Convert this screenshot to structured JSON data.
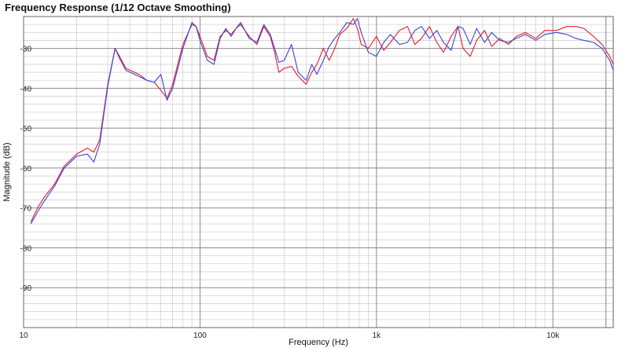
{
  "chart_data": {
    "type": "line",
    "title": "Frequency Response (1/12 Octave Smoothing)",
    "xlabel": "Frequency (Hz)",
    "ylabel": "Magnitude (dB)",
    "x_scale": "log",
    "xlim": [
      10,
      22000
    ],
    "ylim": [
      -100,
      -22
    ],
    "x_tick_labels": [
      {
        "value": 10,
        "label": "10"
      },
      {
        "value": 100,
        "label": "100"
      },
      {
        "value": 1000,
        "label": "1k"
      },
      {
        "value": 10000,
        "label": "10k"
      }
    ],
    "y_tick_labels": [
      {
        "value": -30,
        "label": "-30"
      },
      {
        "value": -40,
        "label": "-40"
      },
      {
        "value": -50,
        "label": "-50"
      },
      {
        "value": -60,
        "label": "-60"
      },
      {
        "value": -70,
        "label": "-70"
      },
      {
        "value": -80,
        "label": "-80"
      },
      {
        "value": -90,
        "label": "-90"
      }
    ],
    "grid": true,
    "series": [
      {
        "color": "#e8192c",
        "points": [
          [
            11,
            -73.5
          ],
          [
            12,
            -70
          ],
          [
            13,
            -67.5
          ],
          [
            15,
            -64
          ],
          [
            17,
            -59.5
          ],
          [
            20,
            -56.5
          ],
          [
            23,
            -55
          ],
          [
            25,
            -56
          ],
          [
            27,
            -53
          ],
          [
            30,
            -39
          ],
          [
            33,
            -30
          ],
          [
            35,
            -32
          ],
          [
            38,
            -35
          ],
          [
            45,
            -36.5
          ],
          [
            50,
            -38
          ],
          [
            55,
            -38.5
          ],
          [
            60,
            -40.5
          ],
          [
            65,
            -42.5
          ],
          [
            70,
            -39
          ],
          [
            80,
            -29
          ],
          [
            90,
            -24
          ],
          [
            95,
            -24.5
          ],
          [
            100,
            -27
          ],
          [
            110,
            -32
          ],
          [
            120,
            -33
          ],
          [
            130,
            -27
          ],
          [
            140,
            -25.5
          ],
          [
            150,
            -26.5
          ],
          [
            160,
            -25
          ],
          [
            170,
            -24
          ],
          [
            190,
            -27
          ],
          [
            210,
            -29
          ],
          [
            230,
            -24.5
          ],
          [
            250,
            -27
          ],
          [
            265,
            -31
          ],
          [
            280,
            -36
          ],
          [
            300,
            -35
          ],
          [
            330,
            -34.5
          ],
          [
            360,
            -37
          ],
          [
            400,
            -39
          ],
          [
            430,
            -36
          ],
          [
            460,
            -34
          ],
          [
            500,
            -30
          ],
          [
            540,
            -33
          ],
          [
            580,
            -30
          ],
          [
            620,
            -26.5
          ],
          [
            680,
            -25
          ],
          [
            740,
            -22.5
          ],
          [
            780,
            -25
          ],
          [
            820,
            -29
          ],
          [
            900,
            -30
          ],
          [
            1000,
            -27
          ],
          [
            1100,
            -30.5
          ],
          [
            1200,
            -28.5
          ],
          [
            1350,
            -25.5
          ],
          [
            1500,
            -24.5
          ],
          [
            1650,
            -29
          ],
          [
            1800,
            -27.5
          ],
          [
            2000,
            -24.5
          ],
          [
            2200,
            -28.5
          ],
          [
            2400,
            -31
          ],
          [
            2650,
            -27
          ],
          [
            2900,
            -24.5
          ],
          [
            3100,
            -30
          ],
          [
            3400,
            -32
          ],
          [
            3700,
            -28
          ],
          [
            4100,
            -25.5
          ],
          [
            4500,
            -29.5
          ],
          [
            5000,
            -27.5
          ],
          [
            5600,
            -29
          ],
          [
            6200,
            -27
          ],
          [
            7000,
            -26
          ],
          [
            8000,
            -27.5
          ],
          [
            9000,
            -25.5
          ],
          [
            10500,
            -25.5
          ],
          [
            12000,
            -24.5
          ],
          [
            13500,
            -24.5
          ],
          [
            15000,
            -25
          ],
          [
            17000,
            -27
          ],
          [
            19000,
            -29
          ],
          [
            21000,
            -32
          ],
          [
            22000,
            -34
          ]
        ]
      },
      {
        "color": "#3b44d4",
        "points": [
          [
            11,
            -74
          ],
          [
            12,
            -71
          ],
          [
            13,
            -68.5
          ],
          [
            15,
            -64.5
          ],
          [
            17,
            -60
          ],
          [
            20,
            -57
          ],
          [
            23,
            -56.5
          ],
          [
            25,
            -58.5
          ],
          [
            27,
            -54
          ],
          [
            30,
            -39.5
          ],
          [
            33,
            -30
          ],
          [
            35,
            -32.5
          ],
          [
            38,
            -35.5
          ],
          [
            45,
            -37
          ],
          [
            50,
            -38
          ],
          [
            55,
            -38.5
          ],
          [
            60,
            -36.5
          ],
          [
            65,
            -43
          ],
          [
            70,
            -40
          ],
          [
            80,
            -30
          ],
          [
            90,
            -23.5
          ],
          [
            95,
            -24.5
          ],
          [
            100,
            -28
          ],
          [
            110,
            -33
          ],
          [
            120,
            -34
          ],
          [
            130,
            -27.5
          ],
          [
            140,
            -25
          ],
          [
            150,
            -27
          ],
          [
            160,
            -25
          ],
          [
            170,
            -23.5
          ],
          [
            190,
            -27.5
          ],
          [
            210,
            -28.5
          ],
          [
            230,
            -24
          ],
          [
            250,
            -26.5
          ],
          [
            265,
            -30
          ],
          [
            280,
            -33.5
          ],
          [
            300,
            -33
          ],
          [
            330,
            -29
          ],
          [
            360,
            -36
          ],
          [
            400,
            -38
          ],
          [
            430,
            -34
          ],
          [
            460,
            -36.5
          ],
          [
            500,
            -33
          ],
          [
            540,
            -29.5
          ],
          [
            580,
            -27.5
          ],
          [
            620,
            -26
          ],
          [
            680,
            -23.5
          ],
          [
            740,
            -24
          ],
          [
            780,
            -22.5
          ],
          [
            820,
            -26
          ],
          [
            900,
            -31
          ],
          [
            1000,
            -32
          ],
          [
            1100,
            -28.5
          ],
          [
            1200,
            -26.5
          ],
          [
            1350,
            -29
          ],
          [
            1500,
            -28.5
          ],
          [
            1650,
            -25.5
          ],
          [
            1800,
            -24.5
          ],
          [
            2000,
            -27.5
          ],
          [
            2200,
            -25.5
          ],
          [
            2400,
            -28.5
          ],
          [
            2650,
            -30.5
          ],
          [
            2900,
            -24.5
          ],
          [
            3100,
            -25
          ],
          [
            3400,
            -29
          ],
          [
            3700,
            -25
          ],
          [
            4100,
            -28.5
          ],
          [
            4500,
            -26
          ],
          [
            5000,
            -28
          ],
          [
            5600,
            -28.5
          ],
          [
            6200,
            -27.5
          ],
          [
            7000,
            -26.5
          ],
          [
            8000,
            -28
          ],
          [
            9000,
            -26.5
          ],
          [
            10500,
            -26
          ],
          [
            12000,
            -26.5
          ],
          [
            13500,
            -27.5
          ],
          [
            15000,
            -28
          ],
          [
            17000,
            -28.5
          ],
          [
            19000,
            -30
          ],
          [
            21000,
            -33
          ],
          [
            22000,
            -35.5
          ]
        ]
      }
    ]
  }
}
